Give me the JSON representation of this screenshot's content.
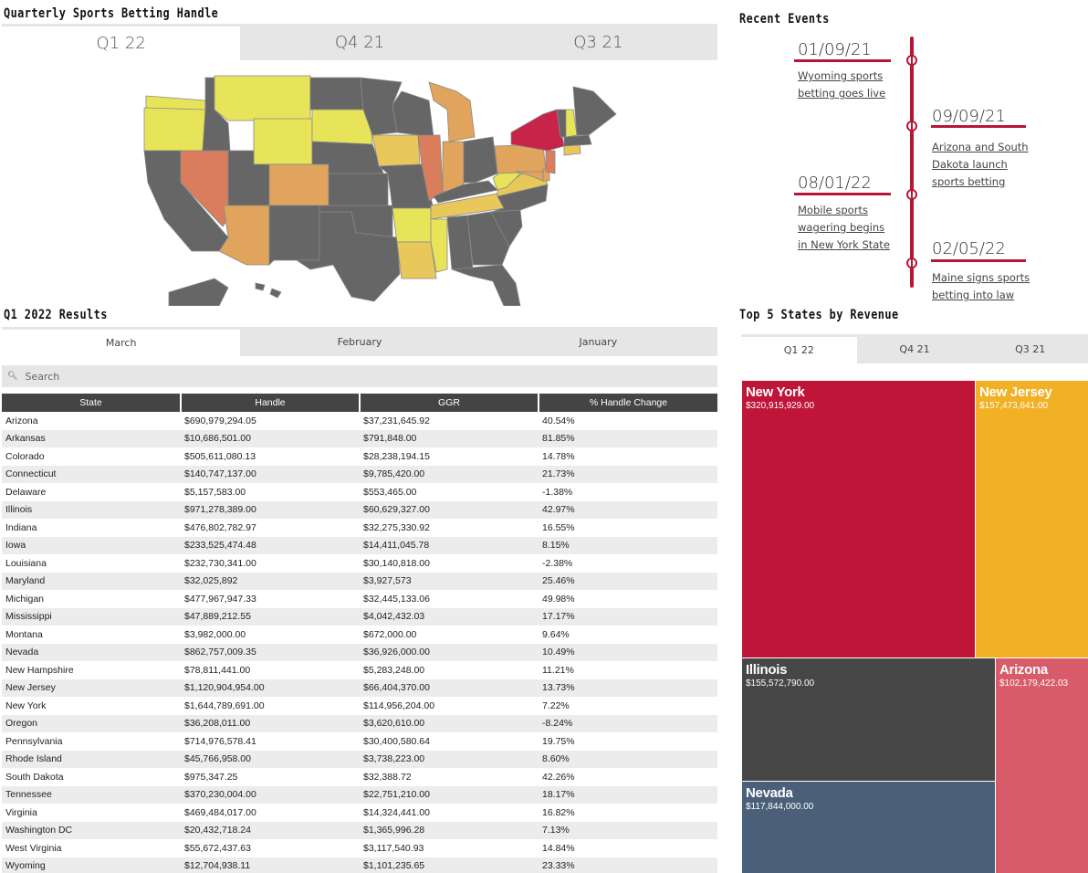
{
  "sections": {
    "handle_title": "Quarterly Sports Betting Handle",
    "events_title": "Recent Events",
    "results_title": "Q1 2022 Results",
    "top5_title": "Top 5 States by Revenue"
  },
  "quarter_tabs": [
    "Q1 22",
    "Q4 21",
    "Q3 21"
  ],
  "month_tabs": [
    "March",
    "February",
    "January"
  ],
  "top5_tabs": [
    "Q1 22",
    "Q4 21",
    "Q3 21"
  ],
  "search": {
    "placeholder": "Search"
  },
  "map_colors": {
    "none": "#666666",
    "low": "#e8e45a",
    "mid_low": "#e8c85a",
    "mid": "#e0a45c",
    "mid_high": "#d97d5c",
    "high": "#c8244a"
  },
  "events": [
    {
      "date": "01/09/21",
      "text": "Wyoming sports betting goes live"
    },
    {
      "date": "09/09/21",
      "text": "Arizona and South Dakota launch sports betting"
    },
    {
      "date": "08/01/22",
      "text": "Mobile sports wagering begins in New York State"
    },
    {
      "date": "02/05/22",
      "text": "Maine signs sports betting into law"
    }
  ],
  "table": {
    "headers": [
      "State",
      "Handle",
      "GGR",
      "% Handle Change"
    ],
    "rows": [
      [
        "Arizona",
        "$690,979,294.05",
        "$37,231,645.92",
        "40.54%"
      ],
      [
        "Arkansas",
        "$10,686,501.00",
        "$791,848.00",
        "81.85%"
      ],
      [
        "Colorado",
        "$505,611,080.13",
        "$28,238,194.15",
        "14.78%"
      ],
      [
        "Connecticut",
        "$140,747,137.00",
        "$9,785,420.00",
        "21.73%"
      ],
      [
        "Delaware",
        "$5,157,583.00",
        "$553,465.00",
        "-1.38%"
      ],
      [
        "Illinois",
        "$971,278,389.00",
        "$60,629,327.00",
        "42.97%"
      ],
      [
        "Indiana",
        "$476,802,782.97",
        "$32,275,330.92",
        "16.55%"
      ],
      [
        "Iowa",
        "$233,525,474.48",
        "$14,411,045.78",
        "8.15%"
      ],
      [
        "Louisiana",
        "$232,730,341.00",
        "$30,140,818.00",
        "-2.38%"
      ],
      [
        "Maryland",
        "$32,025,892",
        "$3,927,573",
        "25.46%"
      ],
      [
        "Michigan",
        "$477,967,947.33",
        "$32,445,133.06",
        "49.98%"
      ],
      [
        "Mississippi",
        "$47,889,212.55",
        "$4,042,432.03",
        "17.17%"
      ],
      [
        "Montana",
        "$3,982,000.00",
        "$672,000.00",
        "9.64%"
      ],
      [
        "Nevada",
        "$862,757,009.35",
        "$36,926,000.00",
        "10.49%"
      ],
      [
        "New Hampshire",
        "$78,811,441.00",
        "$5,283,248.00",
        "11.21%"
      ],
      [
        "New Jersey",
        "$1,120,904,954.00",
        "$66,404,370.00",
        "13.73%"
      ],
      [
        "New York",
        "$1,644,789,691.00",
        "$114,956,204.00",
        "7.22%"
      ],
      [
        "Oregon",
        "$36,208,011.00",
        "$3,620,610.00",
        "-8.24%"
      ],
      [
        "Pennsylvania",
        "$714,976,578.41",
        "$30,400,580.64",
        "19.75%"
      ],
      [
        "Rhode Island",
        "$45,766,958.00",
        "$3,738,223.00",
        "8.60%"
      ],
      [
        "South Dakota",
        "$975,347.25",
        "$32,388.72",
        "42.26%"
      ],
      [
        "Tennessee",
        "$370,230,004.00",
        "$22,751,210.00",
        "18.17%"
      ],
      [
        "Virginia",
        "$469,484,017.00",
        "$14,324,441.00",
        "16.82%"
      ],
      [
        "Washington DC",
        "$20,432,718.24",
        "$1,365,996.28",
        "7.13%"
      ],
      [
        "West Virginia",
        "$55,672,437.63",
        "$3,117,540.93",
        "14.84%"
      ],
      [
        "Wyoming",
        "$12,704,938.11",
        "$1,101,235.65",
        "23.33%"
      ]
    ]
  },
  "treemap": [
    {
      "name": "New York",
      "value": "$320,915,929.00",
      "color": "#be1538"
    },
    {
      "name": "New Jersey",
      "value": "$157,473,641.00",
      "color": "#f2b024"
    },
    {
      "name": "Illinois",
      "value": "$155,572,790.00",
      "color": "#474747"
    },
    {
      "name": "Arizona",
      "value": "$102,179,422.03",
      "color": "#d85b6a"
    },
    {
      "name": "Nevada",
      "value": "$117,844,000.00",
      "color": "#4a6078"
    }
  ]
}
